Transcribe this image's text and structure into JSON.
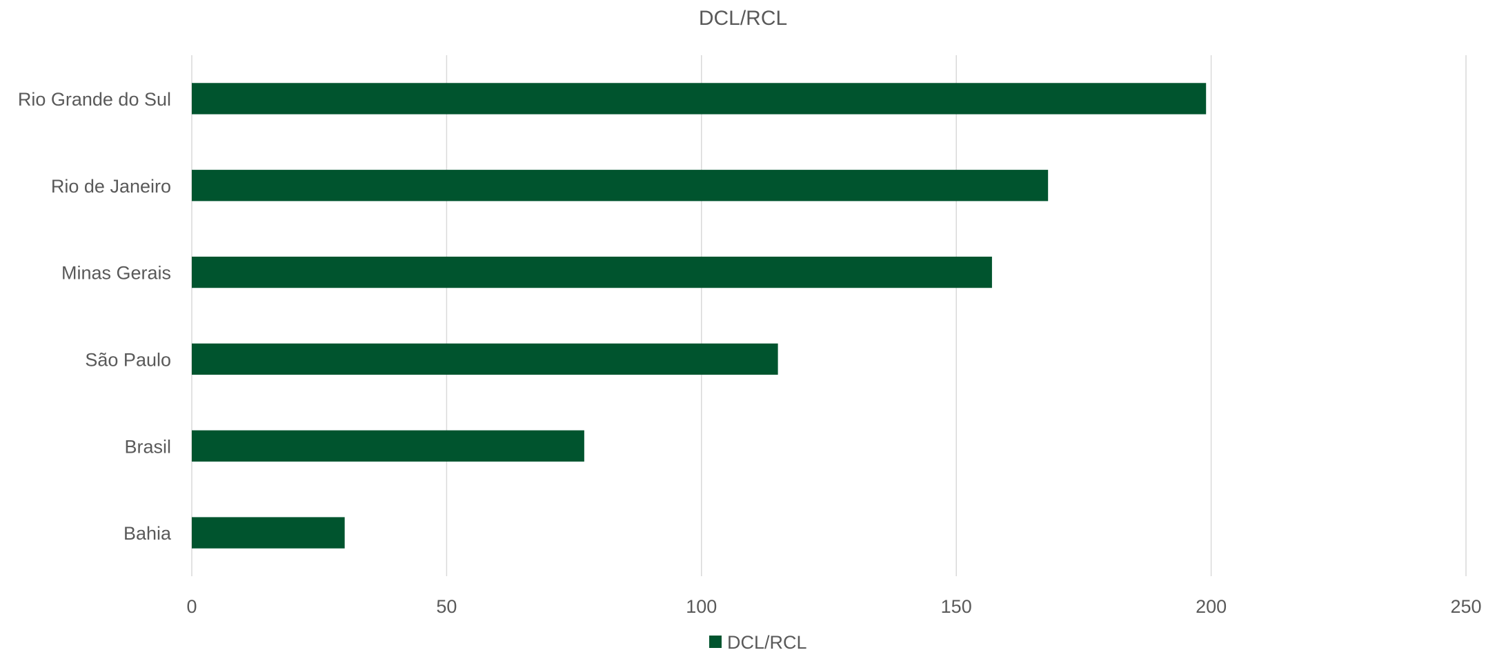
{
  "chart_data": {
    "type": "bar",
    "orientation": "horizontal",
    "title": "DCL/RCL",
    "categories": [
      "Rio Grande do Sul",
      "Rio de Janeiro",
      "Minas Gerais",
      "São Paulo",
      "Brasil",
      "Bahia"
    ],
    "series": [
      {
        "name": "DCL/RCL",
        "values": [
          199,
          168,
          157,
          115,
          77,
          30
        ],
        "color": "#00542e"
      }
    ],
    "xlim": [
      0,
      250
    ],
    "xticks": [
      "0",
      "50",
      "100",
      "150",
      "200",
      "250"
    ],
    "xlabel": "",
    "ylabel": "",
    "grid": "vertical",
    "legend": "bottom"
  }
}
